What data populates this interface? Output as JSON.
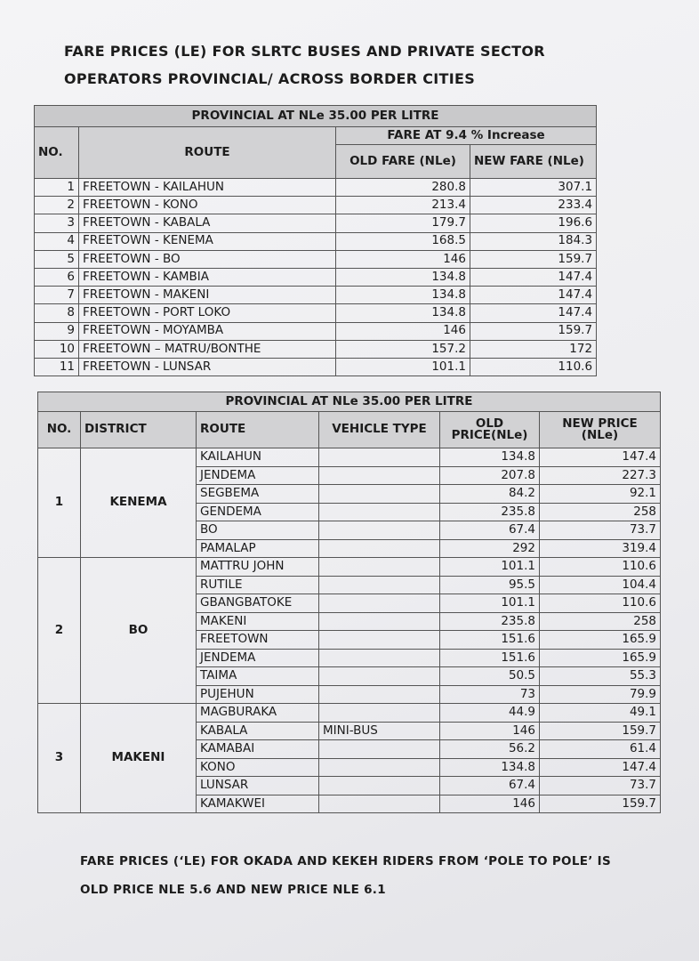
{
  "header": {
    "title_line1": "FARE PRICES (LE) FOR SLRTC BUSES AND PRIVATE SECTOR",
    "title_line2": "OPERATORS PROVINCIAL/ ACROSS BORDER CITIES"
  },
  "table1": {
    "banner": "PROVINCIAL AT NLe 35.00 PER LITRE",
    "headers": {
      "no": "NO.",
      "route": "ROUTE",
      "increase": "FARE AT 9.4 % Increase",
      "old": "OLD FARE (NLe)",
      "new": "NEW FARE (NLe)"
    },
    "rows": [
      [
        1,
        "FREETOWN  - KAILAHUN",
        280.8,
        307.1
      ],
      [
        2,
        "FREETOWN - KONO",
        213.4,
        233.4
      ],
      [
        3,
        "FREETOWN - KABALA",
        179.7,
        196.6
      ],
      [
        4,
        "FREETOWN - KENEMA",
        168.5,
        184.3
      ],
      [
        5,
        "FREETOWN - BO",
        146,
        159.7
      ],
      [
        6,
        "FREETOWN - KAMBIA",
        134.8,
        147.4
      ],
      [
        7,
        "FREETOWN - MAKENI",
        134.8,
        147.4
      ],
      [
        8,
        "FREETOWN - PORT LOKO",
        134.8,
        147.4
      ],
      [
        9,
        "FREETOWN - MOYAMBA",
        146,
        159.7
      ],
      [
        10,
        "FREETOWN  –  MATRU/BONTHE",
        157.2,
        172
      ],
      [
        11,
        "FREETOWN - LUNSAR",
        101.1,
        110.6
      ]
    ]
  },
  "table2": {
    "banner": "PROVINCIAL AT NLe 35.00 PER LITRE",
    "headers": {
      "no": "NO.",
      "district": "DISTRICT",
      "route": "ROUTE",
      "vehicle": "VEHICLE TYPE",
      "old": "OLD PRICE(NLe)",
      "new": "NEW PRICE (NLe)"
    },
    "groups": [
      {
        "no": 1,
        "district": "KENEMA",
        "rows": [
          [
            "KAILAHUN",
            134.8,
            147.4
          ],
          [
            "JENDEMA",
            207.8,
            227.3
          ],
          [
            "SEGBEMA",
            84.2,
            92.1
          ],
          [
            "GENDEMA",
            235.8,
            258
          ],
          [
            "BO",
            67.4,
            73.7
          ],
          [
            "PAMALAP",
            292,
            319.4
          ]
        ]
      },
      {
        "no": 2,
        "district": "BO",
        "rows": [
          [
            "MATTRU JOHN",
            101.1,
            110.6
          ],
          [
            "RUTILE",
            95.5,
            104.4
          ],
          [
            "GBANGBATOKE",
            101.1,
            110.6
          ],
          [
            "MAKENI",
            235.8,
            258
          ],
          [
            "FREETOWN",
            151.6,
            165.9
          ],
          [
            "JENDEMA",
            151.6,
            165.9
          ],
          [
            "TAIMA",
            50.5,
            55.3
          ],
          [
            "PUJEHUN",
            73,
            79.9
          ]
        ]
      },
      {
        "no": 3,
        "district": "MAKENI",
        "rows": [
          [
            "MAGBURAKA",
            44.9,
            49.1
          ],
          [
            "KABALA",
            146,
            159.7
          ],
          [
            "KAMABAI",
            56.2,
            61.4
          ],
          [
            "KONO",
            134.8,
            147.4
          ],
          [
            "LUNSAR",
            67.4,
            73.7
          ],
          [
            "KAMAKWEI",
            146,
            159.7
          ]
        ],
        "vehicle": {
          "row": 1,
          "text": "MINI-BUS"
        }
      }
    ]
  },
  "footer": {
    "line1": "FARE PRICES (‘LE) FOR OKADA AND KEKEH RIDERS FROM ‘POLE TO POLE’ IS",
    "line2": "OLD PRICE NLE 5.6 AND NEW PRICE NLE 6.1"
  }
}
